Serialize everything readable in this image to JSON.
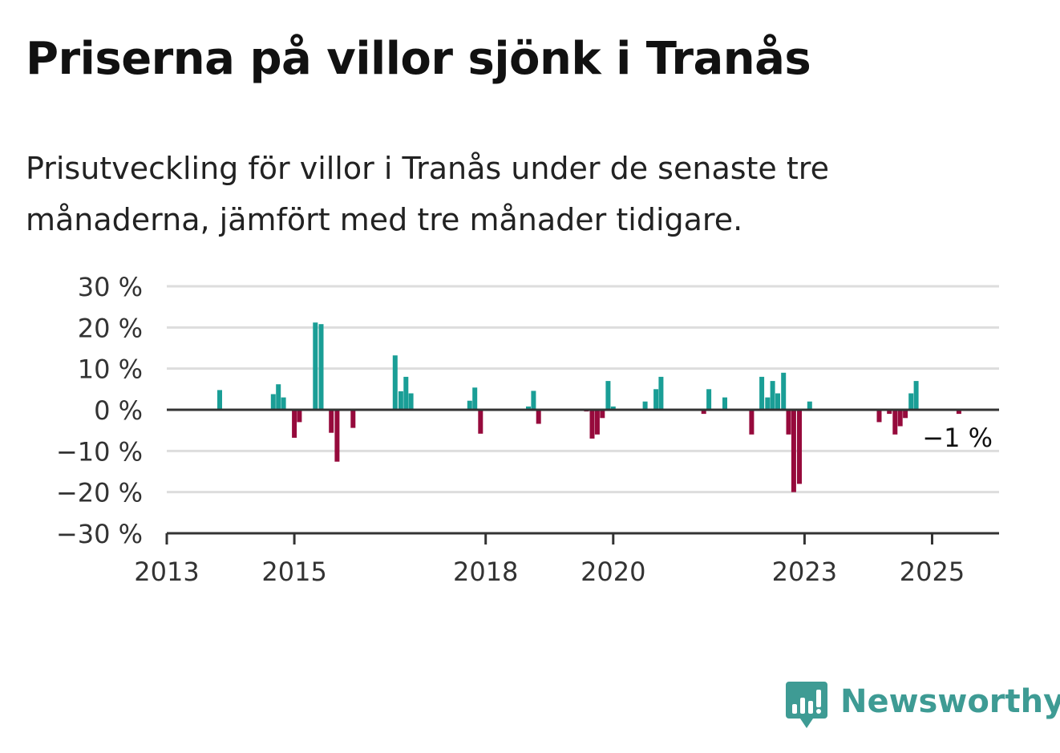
{
  "title": "Priserna på villor sjönk i Tranås",
  "subtitle": "Prisutveckling för villor i Tranås under de senaste tre månaderna, jämfört med tre månader tidigare.",
  "brand": {
    "name": "Newsworthy",
    "logo_icon": "newsworthy-bar-chart-icon"
  },
  "colors": {
    "positive": "#1a9e96",
    "negative": "#960a3c",
    "grid": "#dddddd",
    "axis": "#333333"
  },
  "chart_data": {
    "type": "bar",
    "xlabel": "",
    "ylabel": "",
    "ylim": [
      -30,
      30
    ],
    "xlim": [
      2013.0,
      2026.05
    ],
    "y_ticks": [
      30,
      20,
      10,
      0,
      -10,
      -20,
      -30
    ],
    "y_tick_labels": [
      "30 %",
      "20 %",
      "10 %",
      "0 %",
      "−10 %",
      "−20 %",
      "−30 %"
    ],
    "x_ticks": [
      2013,
      2015,
      2018,
      2020,
      2023,
      2025
    ],
    "x_tick_labels": [
      "2013",
      "2015",
      "2018",
      "2020",
      "2023",
      "2025"
    ],
    "grid": true,
    "end_label": "−1 %",
    "series": [
      {
        "points": [
          {
            "x": 2013.83,
            "y": 4.8
          },
          {
            "x": 2014.67,
            "y": 3.8
          },
          {
            "x": 2014.75,
            "y": 6.2
          },
          {
            "x": 2014.83,
            "y": 3.0
          },
          {
            "x": 2015.0,
            "y": -6.8
          },
          {
            "x": 2015.08,
            "y": -3.0
          },
          {
            "x": 2015.33,
            "y": 21.2
          },
          {
            "x": 2015.42,
            "y": 20.8
          },
          {
            "x": 2015.58,
            "y": -5.6
          },
          {
            "x": 2015.67,
            "y": -12.6
          },
          {
            "x": 2015.92,
            "y": -4.4
          },
          {
            "x": 2016.58,
            "y": 13.2
          },
          {
            "x": 2016.67,
            "y": 4.5
          },
          {
            "x": 2016.75,
            "y": 8.0
          },
          {
            "x": 2016.83,
            "y": 4.0
          },
          {
            "x": 2017.75,
            "y": 2.2
          },
          {
            "x": 2017.83,
            "y": 5.4
          },
          {
            "x": 2017.92,
            "y": -5.8
          },
          {
            "x": 2018.67,
            "y": 0.8
          },
          {
            "x": 2018.75,
            "y": 4.6
          },
          {
            "x": 2018.83,
            "y": -3.4
          },
          {
            "x": 2019.58,
            "y": -0.4
          },
          {
            "x": 2019.67,
            "y": -7.0
          },
          {
            "x": 2019.75,
            "y": -6.0
          },
          {
            "x": 2019.83,
            "y": -2.0
          },
          {
            "x": 2019.92,
            "y": 7.0
          },
          {
            "x": 2020.0,
            "y": 0.8
          },
          {
            "x": 2020.5,
            "y": 2.0
          },
          {
            "x": 2020.67,
            "y": 5.0
          },
          {
            "x": 2020.75,
            "y": 8.0
          },
          {
            "x": 2021.42,
            "y": -1.0
          },
          {
            "x": 2021.5,
            "y": 5.0
          },
          {
            "x": 2021.75,
            "y": 3.0
          },
          {
            "x": 2022.17,
            "y": -6.0
          },
          {
            "x": 2022.33,
            "y": 8.0
          },
          {
            "x": 2022.42,
            "y": 3.0
          },
          {
            "x": 2022.5,
            "y": 7.0
          },
          {
            "x": 2022.58,
            "y": 4.0
          },
          {
            "x": 2022.67,
            "y": 9.0
          },
          {
            "x": 2022.75,
            "y": -6.0
          },
          {
            "x": 2022.83,
            "y": -20.0
          },
          {
            "x": 2022.92,
            "y": -18.0
          },
          {
            "x": 2023.08,
            "y": 2.0
          },
          {
            "x": 2024.17,
            "y": -3.0
          },
          {
            "x": 2024.33,
            "y": -1.0
          },
          {
            "x": 2024.42,
            "y": -6.0
          },
          {
            "x": 2024.5,
            "y": -4.0
          },
          {
            "x": 2024.58,
            "y": -2.0
          },
          {
            "x": 2024.67,
            "y": 4.0
          },
          {
            "x": 2024.75,
            "y": 7.0
          },
          {
            "x": 2025.42,
            "y": -1.0
          }
        ]
      }
    ]
  }
}
